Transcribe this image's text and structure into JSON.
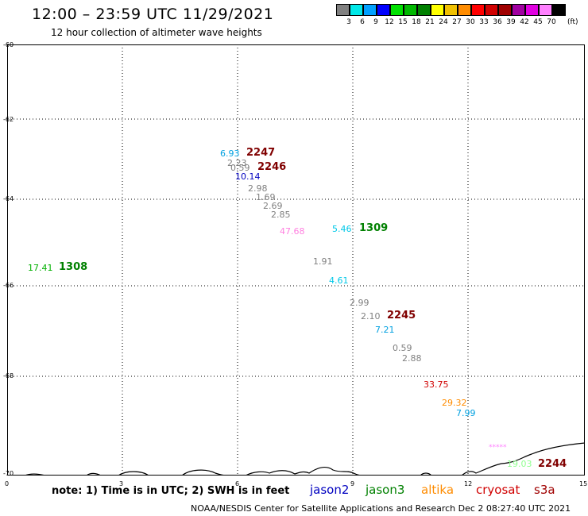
{
  "header": {
    "title": "12:00 – 23:59 UTC 11/29/2021",
    "subtitle": "12 hour collection of altimeter wave heights"
  },
  "legend": {
    "unit": "(ft)",
    "bins": [
      {
        "label": "3",
        "color": "#808080"
      },
      {
        "label": "6",
        "color": "#00e8e8"
      },
      {
        "label": "9",
        "color": "#00a0ff"
      },
      {
        "label": "12",
        "color": "#0000ff"
      },
      {
        "label": "15",
        "color": "#00e000"
      },
      {
        "label": "18",
        "color": "#00b800"
      },
      {
        "label": "21",
        "color": "#008000"
      },
      {
        "label": "24",
        "color": "#ffff00"
      },
      {
        "label": "27",
        "color": "#f0c000"
      },
      {
        "label": "30",
        "color": "#ff8c00"
      },
      {
        "label": "33",
        "color": "#ff0000"
      },
      {
        "label": "36",
        "color": "#d00000"
      },
      {
        "label": "39",
        "color": "#a00000"
      },
      {
        "label": "42",
        "color": "#a000a0"
      },
      {
        "label": "45",
        "color": "#e000e0"
      },
      {
        "label": "70",
        "color": "#ff80ff"
      },
      {
        "label": "",
        "color": "#000000"
      }
    ]
  },
  "axes": {
    "x_ticks": [
      "0",
      "3",
      "6",
      "9",
      "12",
      "15"
    ],
    "y_ticks": [
      "-60",
      "-62",
      "-64",
      "-66",
      "-68",
      "-70"
    ]
  },
  "observations": [
    {
      "text": "6.93",
      "color": "#00a0e0"
    },
    {
      "text": "2.23",
      "color": "#808080"
    },
    {
      "text": "0.59",
      "color": "#808080"
    },
    {
      "text": "10.14",
      "color": "#0000c0"
    },
    {
      "text": "2.98",
      "color": "#808080"
    },
    {
      "text": "1.69",
      "color": "#808080"
    },
    {
      "text": "2.69",
      "color": "#808080"
    },
    {
      "text": "2.85",
      "color": "#808080"
    },
    {
      "text": "47.68",
      "color": "#ff80e0"
    },
    {
      "text": "5.46",
      "color": "#00c8e8"
    },
    {
      "text": "17.41",
      "color": "#00b000"
    },
    {
      "text": "1.91",
      "color": "#808080"
    },
    {
      "text": "4.61",
      "color": "#00c8e8"
    },
    {
      "text": "2.99",
      "color": "#808080"
    },
    {
      "text": "2.10",
      "color": "#808080"
    },
    {
      "text": "7.21",
      "color": "#00a0e0"
    },
    {
      "text": "0.59",
      "color": "#808080"
    },
    {
      "text": "2.88",
      "color": "#808080"
    },
    {
      "text": "33.75",
      "color": "#d00000"
    },
    {
      "text": "29.32",
      "color": "#ff8c00"
    },
    {
      "text": "7.99",
      "color": "#00a0e0"
    },
    {
      "text": "*****",
      "color": "#ff80ff"
    },
    {
      "text": "19.03",
      "color": "#90ff90"
    }
  ],
  "passes": [
    {
      "text": "2247",
      "color": "#800000"
    },
    {
      "text": "2246",
      "color": "#800000"
    },
    {
      "text": "1309",
      "color": "#008000"
    },
    {
      "text": "1308",
      "color": "#008000"
    },
    {
      "text": "2245",
      "color": "#800000"
    },
    {
      "text": "2244",
      "color": "#800000"
    }
  ],
  "footer": {
    "note": "note: 1) Time is in UTC; 2) SWH is in feet",
    "satellites": [
      {
        "name": "jason2",
        "color": "#0000c0"
      },
      {
        "name": "jason3",
        "color": "#008000"
      },
      {
        "name": "altika",
        "color": "#ff8c00"
      },
      {
        "name": "cryosat",
        "color": "#d00000"
      },
      {
        "name": "s3a",
        "color": "#a00000"
      }
    ],
    "credit": "NOAA/NESDIS Center for Satellite Applications and Research    Dec  2 08:27:40 UTC 2021"
  }
}
